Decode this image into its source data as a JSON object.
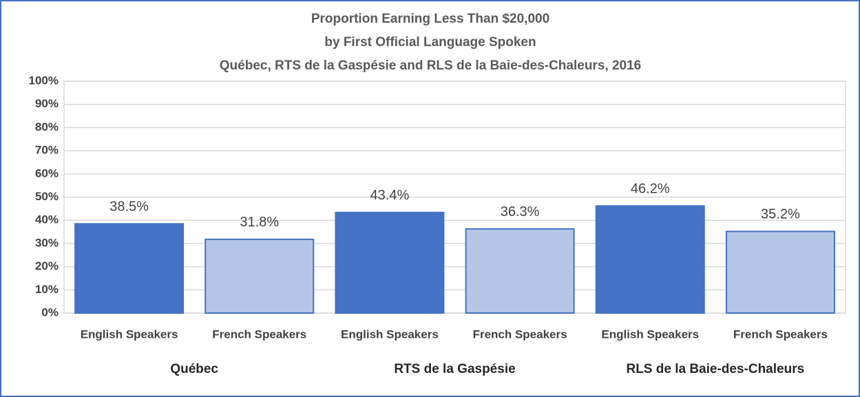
{
  "chart_data": {
    "type": "bar",
    "title": [
      "Proportion Earning Less Than $20,000",
      "by First Official Language Spoken",
      "Québec, RTS de la Gaspésie and RLS de la Baie-des-Chaleurs, 2016"
    ],
    "categories": [
      "English Speakers",
      "French Speakers",
      "English Speakers",
      "French Speakers",
      "English Speakers",
      "French Speakers"
    ],
    "groups": [
      "Québec",
      "RTS de la Gaspésie",
      "RLS de la Baie-des-Chaleurs"
    ],
    "values": [
      38.5,
      31.8,
      43.4,
      36.3,
      46.2,
      35.2
    ],
    "value_labels": [
      "38.5%",
      "31.8%",
      "43.4%",
      "36.3%",
      "46.2%",
      "35.2%"
    ],
    "colors": [
      "#4472c4",
      "#b4c7e7",
      "#4472c4",
      "#b4c7e7",
      "#4472c4",
      "#b4c7e7"
    ],
    "edge_color": "#4472c4",
    "ylim": [
      0,
      100
    ],
    "yticks": [
      {
        "value": 0,
        "label": "0%"
      },
      {
        "value": 10,
        "label": "10%"
      },
      {
        "value": 20,
        "label": "20%"
      },
      {
        "value": 30,
        "label": "30%"
      },
      {
        "value": 40,
        "label": "40%"
      },
      {
        "value": 50,
        "label": "50%"
      },
      {
        "value": 60,
        "label": "60%"
      },
      {
        "value": 70,
        "label": "70%"
      },
      {
        "value": 80,
        "label": "80%"
      },
      {
        "value": 90,
        "label": "90%"
      },
      {
        "value": 100,
        "label": "100%"
      }
    ],
    "grid": true
  }
}
